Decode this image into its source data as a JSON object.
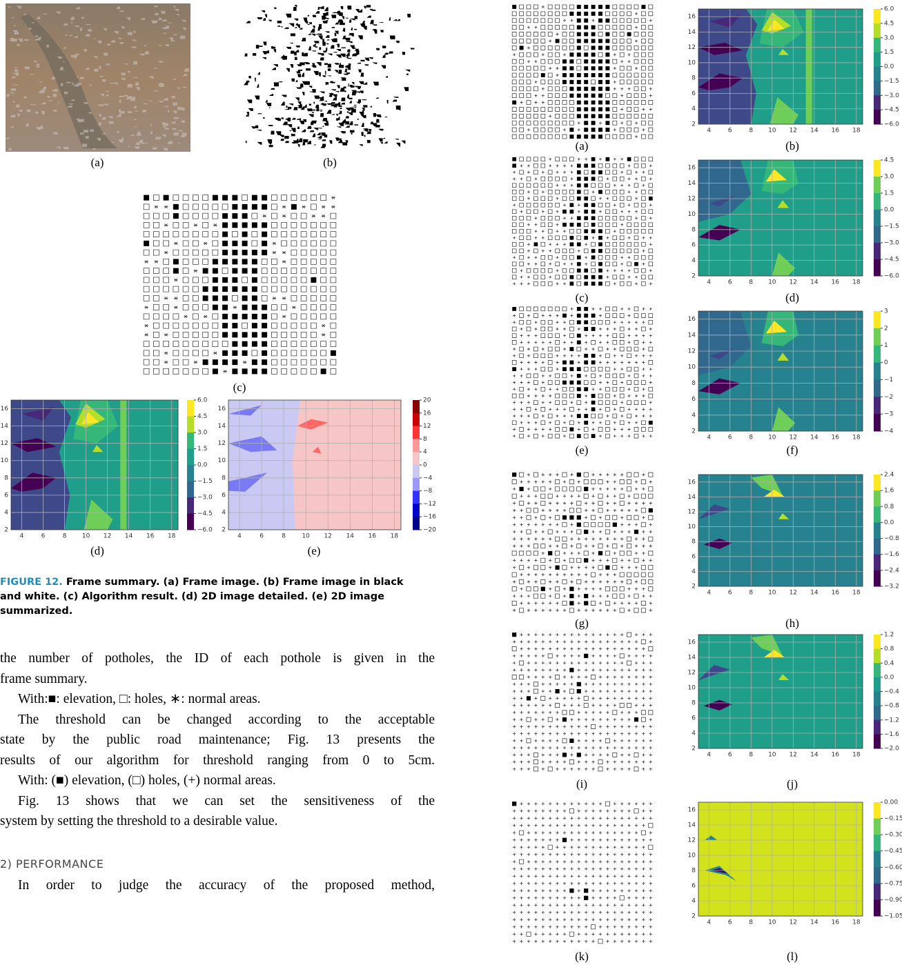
{
  "figure12": {
    "labels": [
      "(a)",
      "(b)",
      "(c)",
      "(d)",
      "(e)"
    ],
    "colorbar_d": [
      "6.0",
      "4.5",
      "3.0",
      "1.5",
      "0.0",
      "−1.5",
      "−3.0",
      "−4.5",
      "−6.0"
    ],
    "colorbar_e": [
      "20",
      "16",
      "12",
      "8",
      "4",
      "0",
      "−4",
      "−8",
      "−12",
      "−16",
      "−20"
    ],
    "caption_label": "FIGURE 12.",
    "caption": [
      " Frame summary. (a) Frame image. (b) Frame image in black",
      "and white. (c) Algorithm result. (d) 2D image detailed. (e) 2D image",
      "summarized."
    ]
  },
  "axes": {
    "xlim": [
      3,
      18.6
    ],
    "ylim": [
      2,
      17
    ],
    "xticks": [
      4,
      6,
      8,
      10,
      12,
      14,
      16,
      18
    ],
    "yticks": [
      2,
      4,
      6,
      8,
      10,
      12,
      14,
      16
    ]
  },
  "body": {
    "lines": [
      "the number of potholes, the ID of each pothole is given in the",
      "frame summary.",
      "With:■: elevation, □: holes, ∗: normal areas.",
      "The threshold can be changed according to the acceptable",
      "state by the public road maintenance; Fig. 13 presents the",
      "results of our algorithm for threshold ranging from 0 to 5cm.",
      "With: (■) elevation, (□) holes, (+) normal areas.",
      "Fig. 13 shows that we can set the sensitiveness of the",
      "system by setting the threshold to a desirable value."
    ],
    "heading": "2) PERFORMANCE",
    "lines2": [
      "In order to judge the accuracy of the proposed method,"
    ]
  },
  "figure13": {
    "labels": [
      "(a)",
      "(b)",
      "(c)",
      "(d)",
      "(e)",
      "(f)",
      "(g)",
      "(h)",
      "(i)",
      "(j)",
      "(k)",
      "(l)"
    ],
    "colorbars": [
      [
        "6.0",
        "4.5",
        "3.0",
        "1.5",
        "0.0",
        "−1.5",
        "−3.0",
        "−4.5",
        "−6.0"
      ],
      [
        "4.5",
        "3.0",
        "1.5",
        "0.0",
        "−1.5",
        "−3.0",
        "−4.5",
        "−6.0"
      ],
      [
        "3",
        "2",
        "1",
        "0",
        "−1",
        "−2",
        "−3",
        "−4"
      ],
      [
        "2.4",
        "1.6",
        "0.8",
        "0.0",
        "−0.8",
        "−1.6",
        "−2.4",
        "−3.2"
      ],
      [
        "1.2",
        "0.8",
        "0.4",
        "0.0",
        "−0.4",
        "−0.8",
        "−1.2",
        "−1.6",
        "−2.0"
      ],
      [
        "0.00",
        "−0.15",
        "−0.30",
        "−0.45",
        "−0.60",
        "−0.75",
        "−0.90",
        "−1.05"
      ]
    ]
  }
}
